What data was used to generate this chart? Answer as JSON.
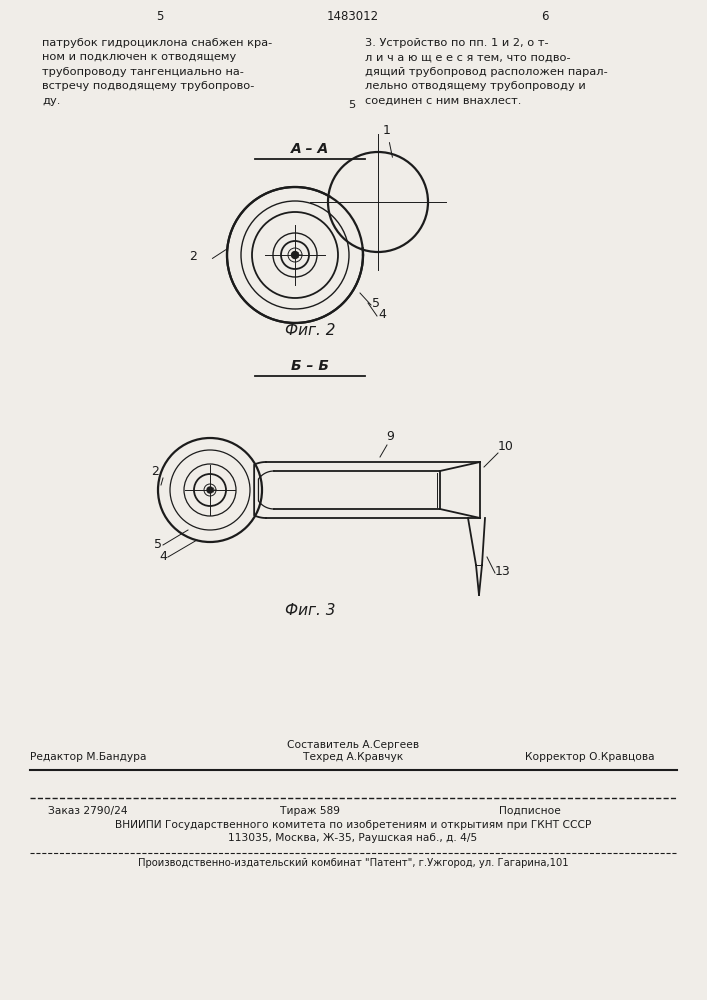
{
  "bg_color": "#f0ede8",
  "page_number_left": "5",
  "page_number_center": "1483012",
  "page_number_right": "6",
  "text_left": "патрубок гидроциклона снабжен кра-\nном и подключен к отводящему\nтрубопроводу тангенциально на-\nвстречу подводящему трубопрово-\nду.",
  "text_right": "3. Устройство по пп. 1 и 2, о т-\nл и ч а ю щ е е с я тем, что подво-\nдящий трубопровод расположен парал-\nлельно отводящему трубопроводу и\nсоединен с ним внахлест.",
  "section_label_AA": "А – А",
  "section_label_BB": "Б – Б",
  "fig2_label": "Фиг. 2",
  "fig3_label": "Фиг. 3",
  "footer_editor": "Редактор М.Бандура",
  "footer_composer1": "Составитель А.Сергеев",
  "footer_composer2": "Техред А.Кравчук",
  "footer_corrector": "Корректор О.Кравцова",
  "footer_order": "Заказ 2790/24",
  "footer_copies": "Тираж 589",
  "footer_type": "Подписное",
  "footer_vnipi": "ВНИИПИ Государственного комитета по изобретениям и открытиям при ГКНТ СССР",
  "footer_address": "113035, Москва, Ж-35, Раушская наб., д. 4/5",
  "footer_plant": "Производственно-издательский комбинат \"Патент\", г.Ужгород, ул. Гагарина,101"
}
